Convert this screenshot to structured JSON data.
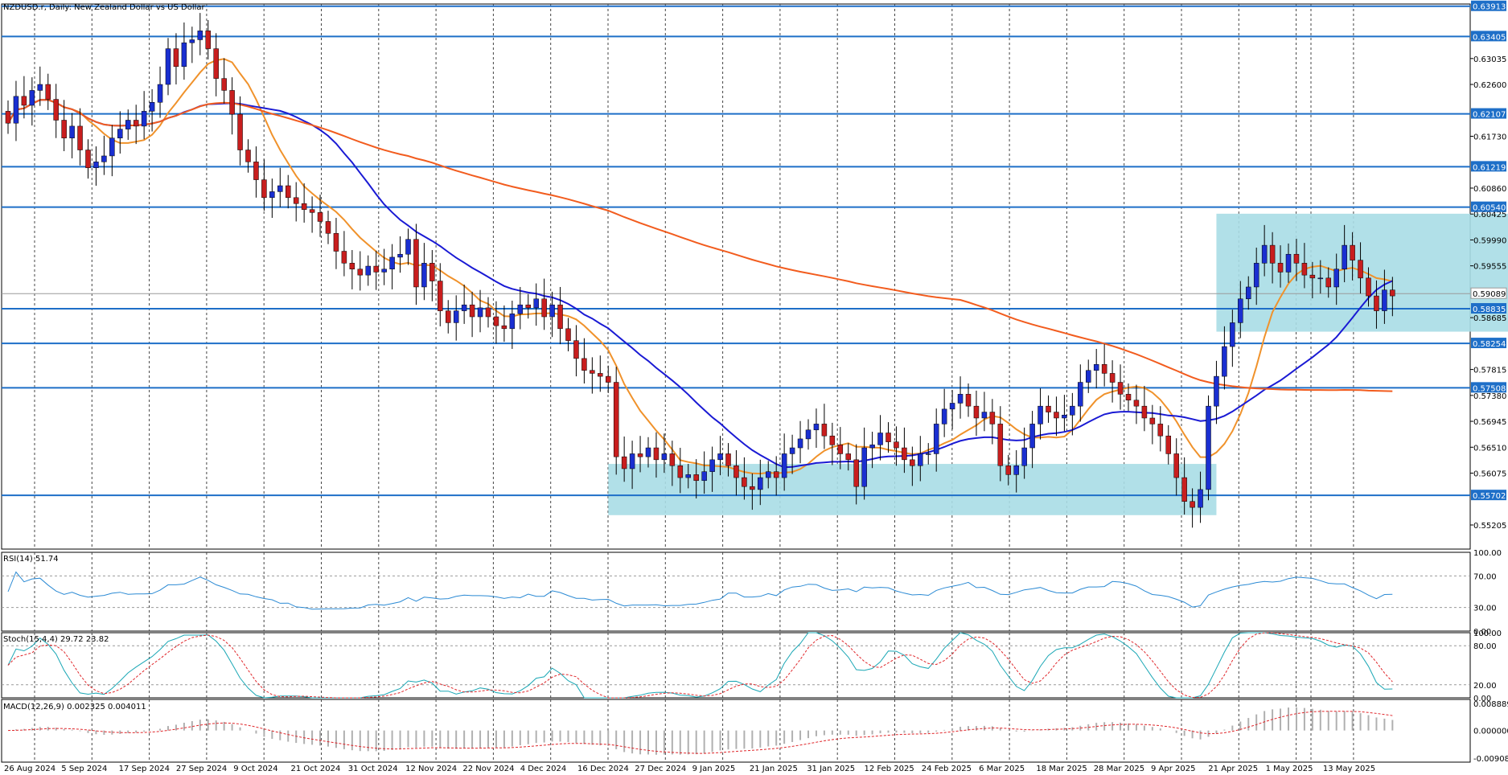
{
  "chart_data": {
    "type": "candlestick",
    "title": "NZDUSD.r, Daily:  New Zealand Dollar vs US Dollar",
    "x_labels": [
      "26 Aug 2024",
      "5 Sep 2024",
      "17 Sep 2024",
      "27 Sep 2024",
      "9 Oct 2024",
      "21 Oct 2024",
      "31 Oct 2024",
      "12 Nov 2024",
      "22 Nov 2024",
      "4 Dec 2024",
      "16 Dec 2024",
      "27 Dec 2024",
      "9 Jan 2025",
      "21 Jan 2025",
      "31 Jan 2025",
      "12 Feb 2025",
      "24 Feb 2025",
      "6 Mar 2025",
      "18 Mar 2025",
      "28 Mar 2025",
      "9 Apr 2025",
      "21 Apr 2025",
      "1 May 2025",
      "13 May 2025"
    ],
    "price_range": [
      0.548,
      0.6395
    ],
    "price_ticks": [
      "0.63035",
      "0.62600",
      "0.61730",
      "0.60860",
      "0.60425",
      "0.59990",
      "0.59555",
      "0.58685",
      "0.57815",
      "0.57380",
      "0.56945",
      "0.56510",
      "0.56075",
      "0.55205"
    ],
    "levels": [
      {
        "value": "0.63913",
        "color": "#1e6fc8"
      },
      {
        "value": "0.63405",
        "color": "#1e6fc8"
      },
      {
        "value": "0.62107",
        "color": "#1e6fc8"
      },
      {
        "value": "0.61219",
        "color": "#1e6fc8"
      },
      {
        "value": "0.60540",
        "color": "#1e6fc8"
      },
      {
        "value": "0.58835",
        "color": "#1e6fc8"
      },
      {
        "value": "0.58254",
        "color": "#1e6fc8"
      },
      {
        "value": "0.57508",
        "color": "#1e6fc8"
      },
      {
        "value": "0.55702",
        "color": "#1e6fc8"
      }
    ],
    "current_price": {
      "value": "0.59089",
      "color": "#9a9a9a"
    },
    "zones": [
      {
        "from_date": "16 Dec 2024",
        "to_date": "9 Apr 2025",
        "low": 0.5537,
        "high": 0.5623,
        "color": "#a8dde6"
      },
      {
        "from_date": "21 Apr 2025",
        "to_date": "13 May 2025+",
        "low": 0.5845,
        "high": 0.6043,
        "color": "#a8dde6"
      }
    ],
    "candles": [
      0.6195,
      0.624,
      0.6225,
      0.625,
      0.626,
      0.6235,
      0.62,
      0.617,
      0.619,
      0.615,
      0.612,
      0.613,
      0.614,
      0.617,
      0.6185,
      0.62,
      0.619,
      0.6215,
      0.623,
      0.626,
      0.632,
      0.629,
      0.633,
      0.6335,
      0.635,
      0.632,
      0.627,
      0.625,
      0.621,
      0.615,
      0.613,
      0.61,
      0.607,
      0.608,
      0.609,
      0.607,
      0.606,
      0.605,
      0.6045,
      0.603,
      0.601,
      0.598,
      0.596,
      0.595,
      0.594,
      0.5955,
      0.5945,
      0.595,
      0.597,
      0.5975,
      0.6,
      0.592,
      0.596,
      0.593,
      0.588,
      0.586,
      0.588,
      0.589,
      0.587,
      0.5885,
      0.587,
      0.5855,
      0.585,
      0.5875,
      0.589,
      0.5885,
      0.59,
      0.587,
      0.589,
      0.585,
      0.583,
      0.58,
      0.578,
      0.5775,
      0.577,
      0.576,
      0.5635,
      0.5615,
      0.564,
      0.5635,
      0.565,
      0.563,
      0.564,
      0.562,
      0.56,
      0.5605,
      0.5595,
      0.561,
      0.563,
      0.564,
      0.562,
      0.56,
      0.5585,
      0.558,
      0.56,
      0.561,
      0.56,
      0.564,
      0.565,
      0.5665,
      0.568,
      0.569,
      0.567,
      0.5655,
      0.564,
      0.563,
      0.5585,
      0.565,
      0.5655,
      0.5675,
      0.566,
      0.565,
      0.563,
      0.562,
      0.564,
      0.564,
      0.569,
      0.5715,
      0.5725,
      0.574,
      0.572,
      0.57,
      0.571,
      0.569,
      0.562,
      0.5605,
      0.562,
      0.565,
      0.569,
      0.572,
      0.571,
      0.57,
      0.5705,
      0.572,
      0.576,
      0.578,
      0.579,
      0.5775,
      0.576,
      0.574,
      0.573,
      0.572,
      0.57,
      0.569,
      0.567,
      0.564,
      0.56,
      0.556,
      0.555,
      0.558,
      0.572,
      0.577,
      0.582,
      0.586,
      0.59,
      0.592,
      0.596,
      0.599,
      0.596,
      0.5945,
      0.5975,
      0.596,
      0.594,
      0.5935,
      0.5935,
      0.592,
      0.595,
      0.599,
      0.5965,
      0.5935,
      0.5905,
      0.588,
      0.5915,
      0.5905
    ],
    "moving_averages": [
      {
        "period": "20",
        "color": "#f0922b"
      },
      {
        "period": "50",
        "color": "#1a1ad4"
      },
      {
        "period": "200",
        "color": "#f25c1e"
      }
    ],
    "rsi": {
      "label": "RSI(14) 51.74",
      "levels": [
        "100.00",
        "70.00",
        "30.00",
        "0.00"
      ],
      "color": "#2b8ad4"
    },
    "stoch": {
      "label": "Stoch(15,4,4) 29.72 23.82",
      "levels": [
        "100.00",
        "80.00",
        "20.00",
        "0.00"
      ],
      "main_color": "#1aa7b5",
      "signal_color": "#e0262a"
    },
    "macd": {
      "label": "MACD(12,26,9) 0.002325 0.004011",
      "levels": [
        "0.008889",
        "0.000000",
        "-0.009082"
      ],
      "signal_color": "#e0262a"
    },
    "colors": {
      "bull": "#1a2fd1",
      "bear": "#c81e1e",
      "grid": "#444444"
    }
  }
}
